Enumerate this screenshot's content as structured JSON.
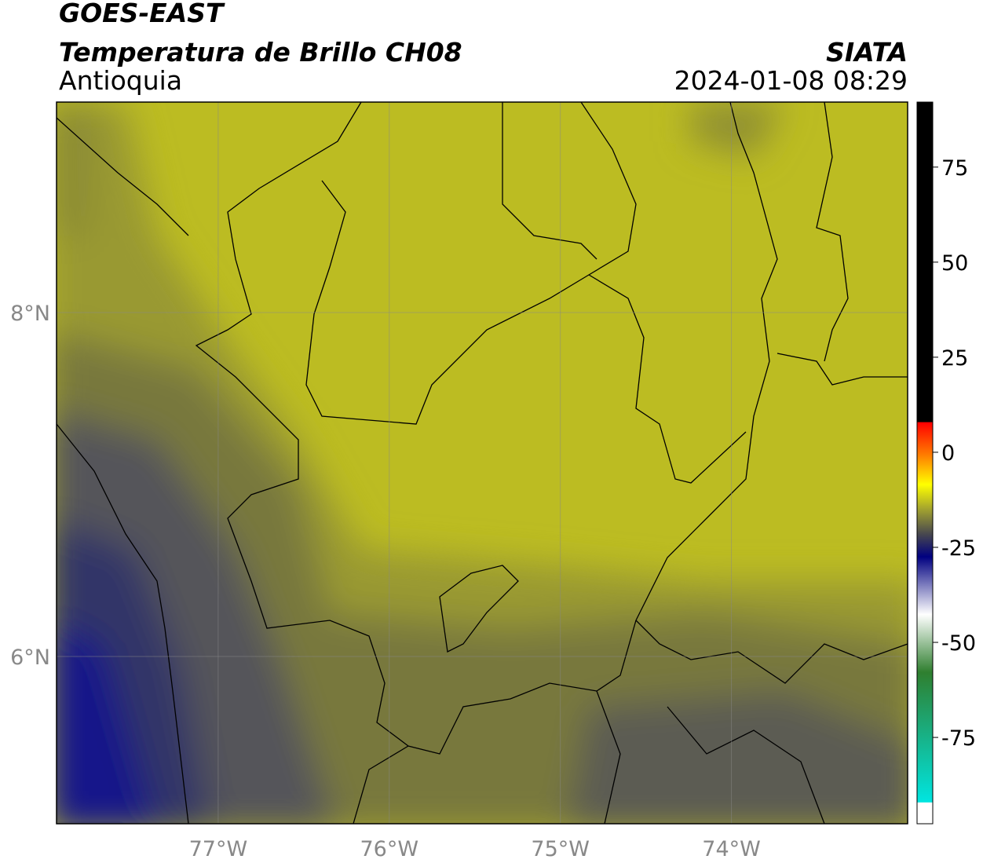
{
  "header": {
    "title": "GOES-EAST",
    "subtitle": "Temperatura de Brillo CH08",
    "region": "Antioquia",
    "source": "SIATA",
    "datetime": "2024-01-08 08:29"
  },
  "map": {
    "lonlim": [
      -77.945,
      -72.97
    ],
    "latlim": [
      5.027,
      9.224
    ],
    "lon_ticks": [
      {
        "value": -77,
        "label": "77°W"
      },
      {
        "value": -76,
        "label": "76°W"
      },
      {
        "value": -75,
        "label": "75°W"
      },
      {
        "value": -74,
        "label": "74°W"
      }
    ],
    "lat_ticks": [
      {
        "value": 8,
        "label": "8°N"
      },
      {
        "value": 6,
        "label": "6°N"
      }
    ]
  },
  "colorbar": {
    "range": [
      -97.7,
      92.1
    ],
    "ticks": [
      75,
      50,
      25,
      0,
      -25,
      -50,
      -75
    ]
  }
}
